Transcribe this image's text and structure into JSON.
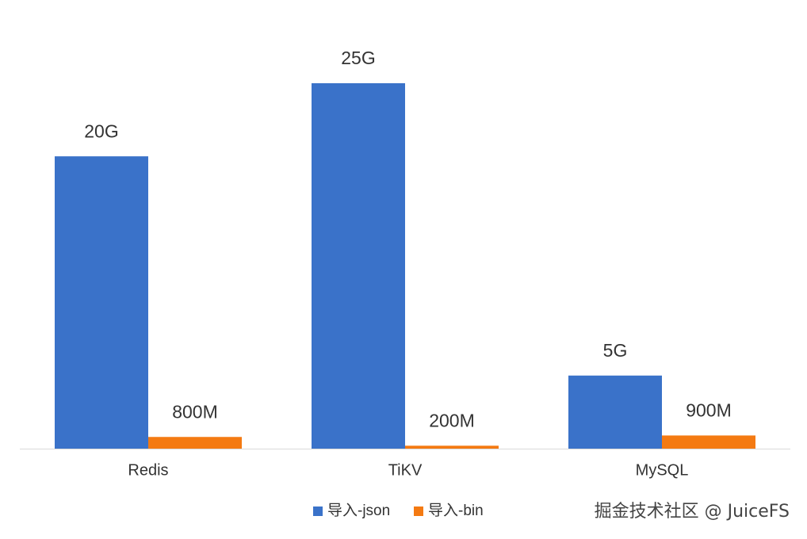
{
  "chart_data": {
    "type": "bar",
    "categories": [
      "Redis",
      "TiKV",
      "MySQL"
    ],
    "series": [
      {
        "name": "导入-json",
        "color": "#3a72c9",
        "values": [
          20,
          25,
          5
        ],
        "value_labels": [
          "20G",
          "25G",
          "5G"
        ]
      },
      {
        "name": "导入-bin",
        "color": "#f47a12",
        "values": [
          0.8,
          0.2,
          0.9
        ],
        "value_labels": [
          "800M",
          "200M",
          "900M"
        ]
      }
    ],
    "legend": "bottom",
    "watermark": "掘金技术社区 @ JuiceFS"
  }
}
